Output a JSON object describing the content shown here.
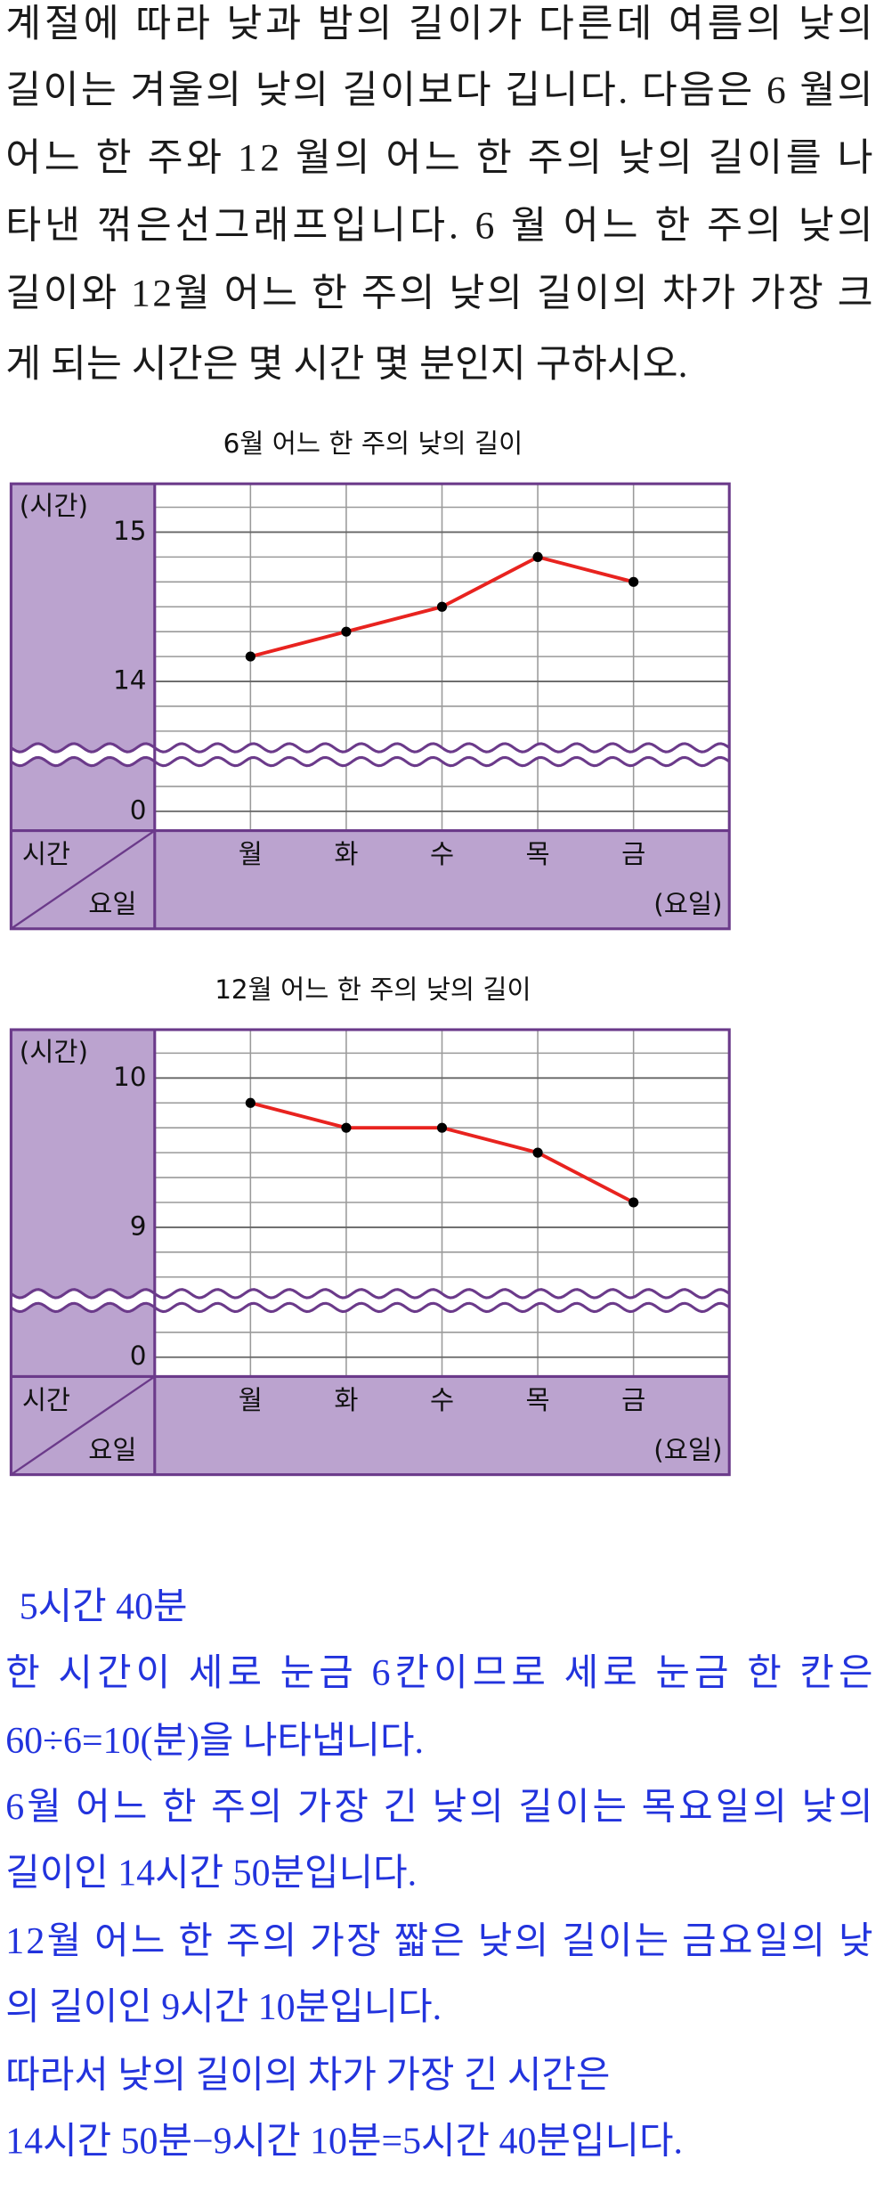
{
  "problem": {
    "lines": [
      "계절에 따라 낮과 밤의 길이가 다른데 여름의 낮의",
      "길이는 겨울의 낮의 길이보다 깁니다. 다음은 6 월의",
      "어느 한 주와 12 월의 어느 한 주의 낮의 길이를 나",
      "타낸 꺾은선그래프입니다. 6 월 어느 한 주의 낮의",
      "길이와 12월 어느 한 주의 낮의 길이의 차가 가장 크",
      "게 되는 시간은 몇 시간 몇 분인지 구하시오."
    ]
  },
  "charts": [
    {
      "type": "line",
      "title": "6월 어느 한 주의 낮의 길이",
      "y_label": "(시간)",
      "x_label": "(요일)",
      "corner_top": "시간",
      "corner_bottom": "요일",
      "categories": [
        "월",
        "화",
        "수",
        "목",
        "금"
      ],
      "values": [
        14.1667,
        14.3333,
        14.5,
        14.8333,
        14.6667
      ],
      "color": "#e8231f",
      "ylim": [
        13.6,
        15.3
      ],
      "yticks": [
        0,
        14,
        15
      ],
      "axis_break": true,
      "grid_divisions": 6
    },
    {
      "type": "line",
      "title": "12월 어느 한 주의 낮의 길이",
      "y_label": "(시간)",
      "x_label": "(요일)",
      "corner_top": "시간",
      "corner_bottom": "요일",
      "categories": [
        "월",
        "화",
        "수",
        "목",
        "금"
      ],
      "values": [
        9.8333,
        9.6667,
        9.6667,
        9.5,
        9.1667
      ],
      "color": "#e8231f",
      "ylim": [
        8.6,
        10.3
      ],
      "yticks": [
        0,
        9,
        10
      ],
      "axis_break": true,
      "grid_divisions": 6
    }
  ],
  "solution": {
    "answer": "5시간 40분",
    "lines": [
      "한 시간이 세로 눈금 6칸이므로 세로 눈금 한 칸은",
      "60÷6=10(분)을 나타냅니다.",
      "6월 어느 한 주의 가장 긴 낮의 길이는 목요일의 낮의",
      "길이인 14시간 50분입니다.",
      "12월 어느 한 주의 가장 짧은 낮의 길이는 금요일의 낮",
      "의 길이인 9시간 10분입니다.",
      "따라서 낮의 길이의 차가 가장 긴 시간은",
      "14시간 50분−9시간 10분=5시간 40분입니다."
    ]
  }
}
